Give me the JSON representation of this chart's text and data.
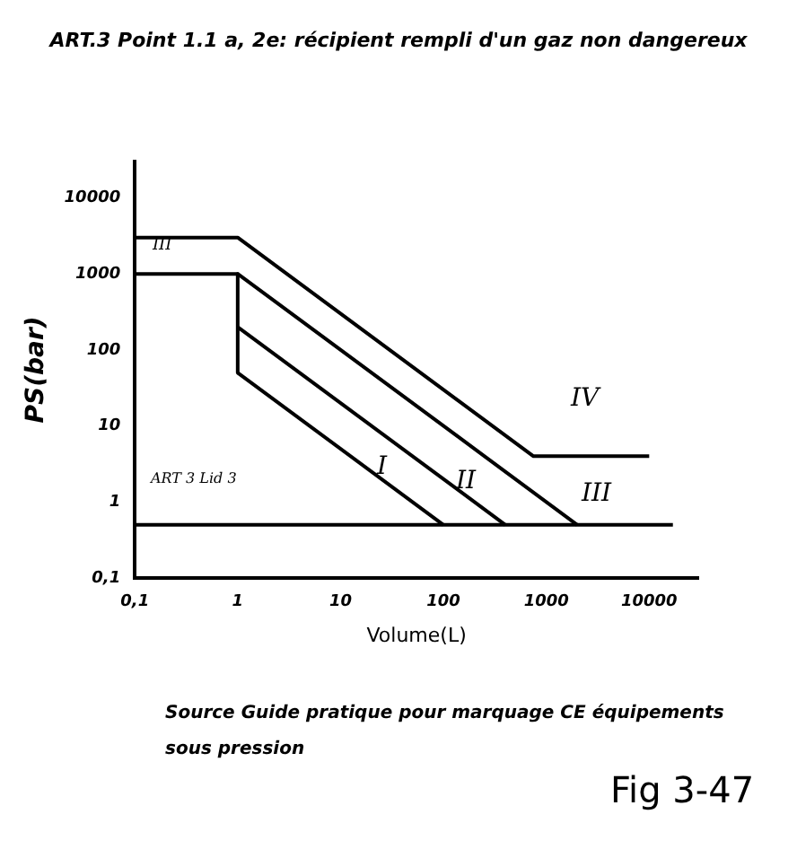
{
  "chart_data": {
    "type": "line",
    "title": "ART.3 Point 1.1 a, 2e: récipient rempli d'un gaz non dangereux",
    "xlabel": "Volume(L)",
    "ylabel": "PS(bar)",
    "log": "xy",
    "grid": false,
    "legend": false,
    "marker": "none",
    "line_style": "solid",
    "xlim": [
      0.1,
      30000
    ],
    "ylim": [
      0.1,
      30000
    ],
    "xticks": [
      {
        "value": 0.1,
        "label": "0,1"
      },
      1,
      10,
      100,
      1000,
      10000
    ],
    "yticks": [
      {
        "value": 0.1,
        "label": "0,1"
      },
      1,
      10,
      100,
      1000,
      10000
    ],
    "series": [
      {
        "color": "#000000",
        "x": [
          0.1,
          17000
        ],
        "values": [
          0.5,
          0.5
        ]
      },
      {
        "color": "#000000",
        "x": [
          1,
          100
        ],
        "values": [
          50,
          0.5
        ]
      },
      {
        "color": "#000000",
        "x": [
          1,
          400
        ],
        "values": [
          200,
          0.5
        ]
      },
      {
        "color": "#000000",
        "x": [
          0.1,
          1,
          2000
        ],
        "values": [
          1000,
          1000,
          0.5
        ]
      },
      {
        "color": "#000000",
        "x": [
          1,
          1
        ],
        "values": [
          1000,
          50
        ]
      },
      {
        "color": "#000000",
        "x": [
          0.1,
          1,
          750,
          10000
        ],
        "values": [
          3000,
          3000,
          4,
          4
        ]
      }
    ],
    "annotations": [
      "III",
      "I",
      "II",
      "III",
      "IV",
      "ART 3 Lid 3",
      "Source Guide pratique pour marquage CE équipements sous pression",
      "Fig 3-47"
    ]
  }
}
